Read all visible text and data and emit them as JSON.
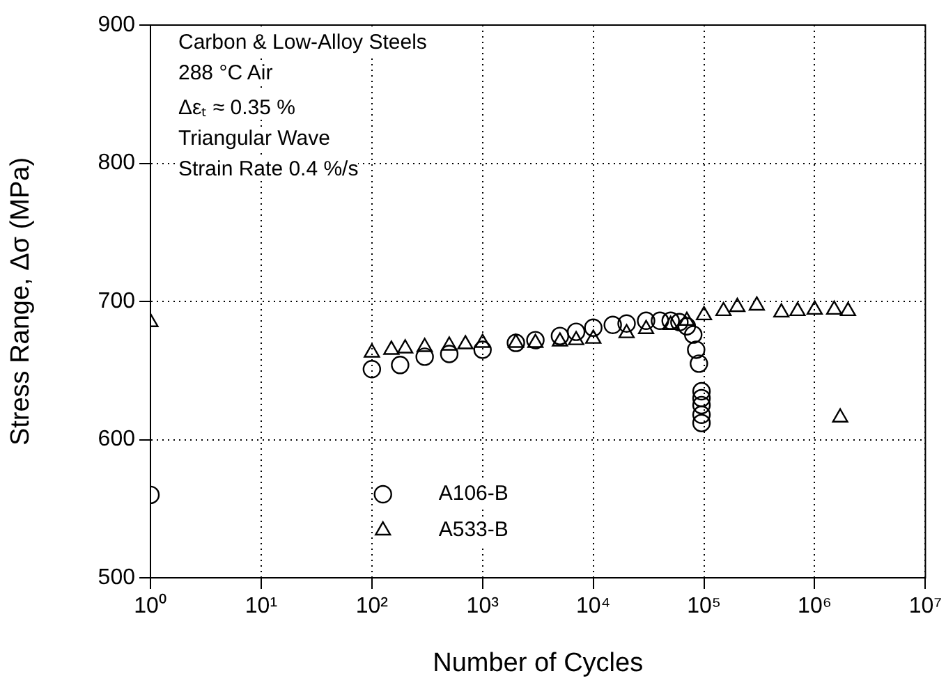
{
  "chart_data": {
    "type": "scatter",
    "xlabel": "Number of Cycles",
    "ylabel": "Stress Range, Δσ (MPa)",
    "annotations": [
      "Carbon & Low-Alloy Steels",
      "288 °C Air",
      "Δεₜ ≈ 0.35 %",
      "Triangular Wave",
      "Strain Rate 0.4 %/s"
    ],
    "log": "x",
    "grid": true,
    "legend": "bottom",
    "xlim": [
      1,
      10000000
    ],
    "xticks": [
      {
        "value": 1,
        "label": "10⁰"
      },
      {
        "value": 10,
        "label": "10¹"
      },
      {
        "value": 100,
        "label": "10²"
      },
      {
        "value": 1000,
        "label": "10³"
      },
      {
        "value": 10000,
        "label": "10⁴"
      },
      {
        "value": 100000,
        "label": "10⁵"
      },
      {
        "value": 1000000,
        "label": "10⁶"
      },
      {
        "value": 10000000,
        "label": "10⁷"
      }
    ],
    "ylim": [
      500,
      900
    ],
    "yticks": [
      500,
      600,
      700,
      800,
      900
    ],
    "series": [
      {
        "name": "A106-B",
        "color": "#000000",
        "marker": "circle",
        "x": [
          1,
          100,
          180,
          300,
          500,
          1000,
          2000,
          3000,
          5000,
          7000,
          10000,
          15000,
          20000,
          30000,
          40000,
          50000,
          60000,
          70000,
          80000,
          85000,
          90000,
          95000,
          95000,
          95000,
          95000,
          95000
        ],
        "values": [
          560,
          651,
          654,
          660,
          662,
          665,
          670,
          672,
          675,
          678,
          681,
          683,
          684,
          686,
          686,
          686,
          685,
          682,
          676,
          665,
          655,
          635,
          630,
          625,
          618,
          612
        ]
      },
      {
        "name": "A533-B",
        "color": "#000000",
        "marker": "triangle",
        "x": [
          1,
          100,
          150,
          200,
          300,
          500,
          700,
          1000,
          2000,
          3000,
          5000,
          7000,
          10000,
          20000,
          30000,
          50000,
          70000,
          100000,
          150000,
          200000,
          300000,
          500000,
          700000,
          1000000,
          1500000,
          2000000,
          1700000
        ],
        "values": [
          685,
          663,
          665,
          666,
          667,
          668,
          669,
          670,
          670,
          670,
          671,
          672,
          673,
          677,
          680,
          683,
          686,
          690,
          693,
          696,
          697,
          692,
          693,
          694,
          694,
          693,
          616
        ]
      }
    ]
  }
}
